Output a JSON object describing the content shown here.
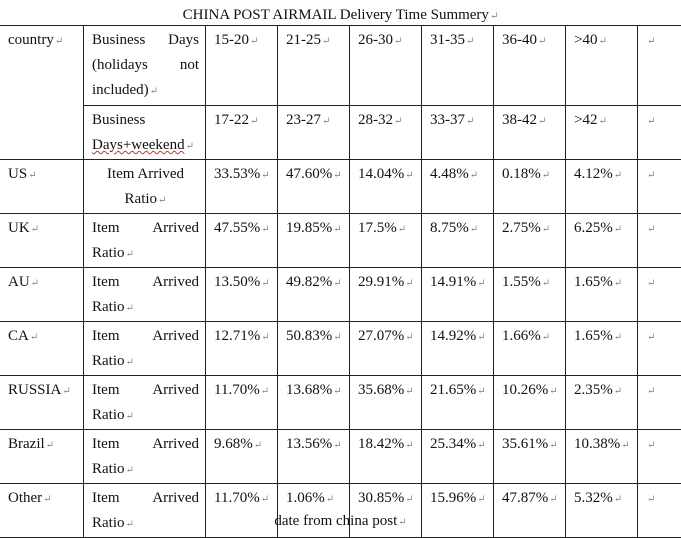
{
  "title": "CHINA POST AIRMAIL Delivery Time Summery",
  "header": {
    "country_label": "country",
    "row1": {
      "label": "Business Days (holidays not included)",
      "ranges": [
        "15-20",
        "21-25",
        "26-30",
        "31-35",
        "36-40",
        ">40"
      ]
    },
    "row2": {
      "label": "Business Days+weekend",
      "ranges": [
        "17-22",
        "23-27",
        "28-32",
        "33-37",
        "38-42",
        ">42"
      ]
    }
  },
  "rows": [
    {
      "country": "US",
      "metric": "Item Arrived Ratio",
      "values": [
        "33.53%",
        "47.60%",
        "14.04%",
        "4.48%",
        "0.18%",
        "4.12%"
      ]
    },
    {
      "country": "UK",
      "metric": "Item Arrived Ratio",
      "values": [
        "47.55%",
        "19.85%",
        "17.5%",
        "8.75%",
        "2.75%",
        "6.25%"
      ]
    },
    {
      "country": "AU",
      "metric": "Item Arrived Ratio",
      "values": [
        "13.50%",
        "49.82%",
        "29.91%",
        "14.91%",
        "1.55%",
        "1.65%"
      ]
    },
    {
      "country": "CA",
      "metric": "Item Arrived Ratio",
      "values": [
        "12.71%",
        "50.83%",
        "27.07%",
        "14.92%",
        "1.66%",
        "1.65%"
      ]
    },
    {
      "country": "RUSSIA",
      "metric": "Item Arrived Ratio",
      "values": [
        "11.70%",
        "13.68%",
        "35.68%",
        "21.65%",
        "10.26%",
        "2.35%"
      ]
    },
    {
      "country": "Brazil",
      "metric": "Item Arrived Ratio",
      "values": [
        "9.68%",
        "13.56%",
        "18.42%",
        "25.34%",
        "35.61%",
        "10.38%"
      ]
    },
    {
      "country": "Other",
      "metric": "Item Arrived Ratio",
      "values": [
        "11.70%",
        "1.06%",
        "30.85%",
        "15.96%",
        "47.87%",
        "5.32%"
      ]
    }
  ],
  "footer": "date from china post"
}
